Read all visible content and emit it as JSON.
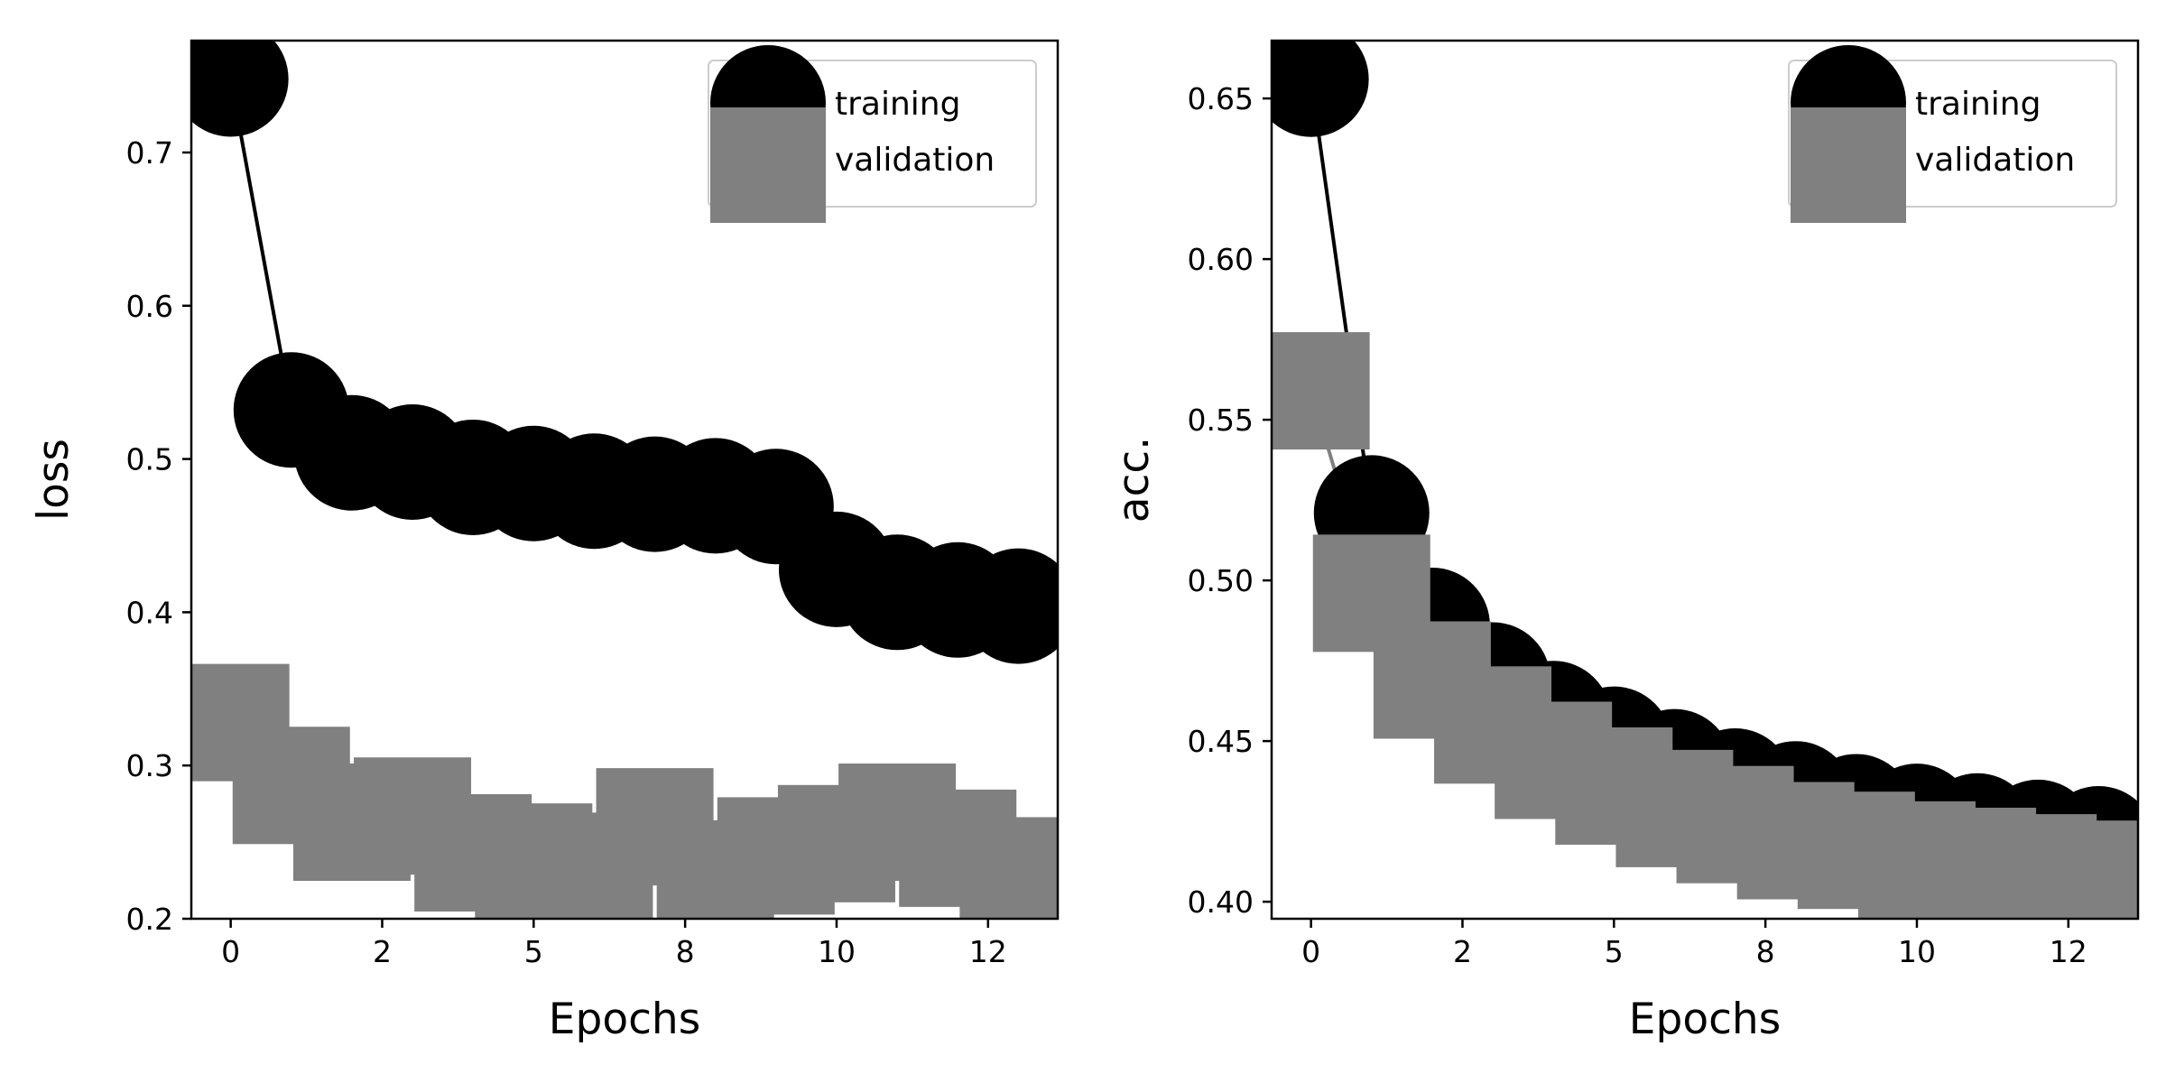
{
  "colors": {
    "training": "#000000",
    "validation": "#808080",
    "axes": "#000000",
    "legend_border": "#cccccc",
    "background": "#ffffff"
  },
  "chart_data": [
    {
      "type": "line",
      "xlabel": "Epochs",
      "ylabel": "loss",
      "xlim": [
        -0.65,
        13.65
      ],
      "ylim": [
        0.2,
        0.773
      ],
      "xticks": [
        0,
        2.5,
        5,
        7.5,
        10,
        12.5
      ],
      "xtick_labels": [
        "0",
        "2",
        "5",
        "8",
        "10",
        "12"
      ],
      "yticks": [
        0.2,
        0.3,
        0.4,
        0.5,
        0.6,
        0.7
      ],
      "ytick_labels": [
        "0.2",
        "0.3",
        "0.4",
        "0.5",
        "0.6",
        "0.7"
      ],
      "legend_position": "top-right",
      "series": [
        {
          "name": "training",
          "marker": "circle",
          "x": [
            0,
            1,
            2,
            3,
            4,
            5,
            6,
            7,
            8,
            9,
            10,
            11,
            12,
            13
          ],
          "y": [
            0.748,
            0.532,
            0.504,
            0.498,
            0.488,
            0.484,
            0.479,
            0.477,
            0.476,
            0.469,
            0.428,
            0.413,
            0.408,
            0.404
          ]
        },
        {
          "name": "validation",
          "marker": "square",
          "x": [
            0,
            1,
            2,
            3,
            4,
            5,
            6,
            7,
            8,
            9,
            10,
            11,
            12,
            13
          ],
          "y": [
            0.328,
            0.287,
            0.263,
            0.267,
            0.243,
            0.237,
            0.231,
            0.26,
            0.226,
            0.241,
            0.249,
            0.263,
            0.246,
            0.228
          ]
        }
      ]
    },
    {
      "type": "line",
      "xlabel": "Epochs",
      "ylabel": "acc.",
      "xlim": [
        -0.65,
        13.65
      ],
      "ylim": [
        0.3947,
        0.668
      ],
      "xticks": [
        0,
        2.5,
        5,
        7.5,
        10,
        12.5
      ],
      "xtick_labels": [
        "0",
        "2",
        "5",
        "8",
        "10",
        "12"
      ],
      "yticks": [
        0.4,
        0.45,
        0.5,
        0.55,
        0.6,
        0.65
      ],
      "ytick_labels": [
        "0.40",
        "0.45",
        "0.50",
        "0.55",
        "0.60",
        "0.65"
      ],
      "legend_position": "top-right",
      "series": [
        {
          "name": "training",
          "marker": "circle",
          "x": [
            0,
            1,
            2,
            3,
            4,
            5,
            6,
            7,
            8,
            9,
            10,
            11,
            12,
            13
          ],
          "y": [
            0.656,
            0.521,
            0.486,
            0.469,
            0.457,
            0.449,
            0.442,
            0.436,
            0.432,
            0.428,
            0.425,
            0.422,
            0.42,
            0.418
          ]
        },
        {
          "name": "validation",
          "marker": "square",
          "x": [
            0,
            1,
            2,
            3,
            4,
            5,
            6,
            7,
            8,
            9,
            10,
            11,
            12,
            13
          ],
          "y": [
            0.559,
            0.496,
            0.469,
            0.455,
            0.444,
            0.436,
            0.429,
            0.424,
            0.419,
            0.416,
            0.413,
            0.411,
            0.409,
            0.407
          ]
        }
      ]
    }
  ]
}
